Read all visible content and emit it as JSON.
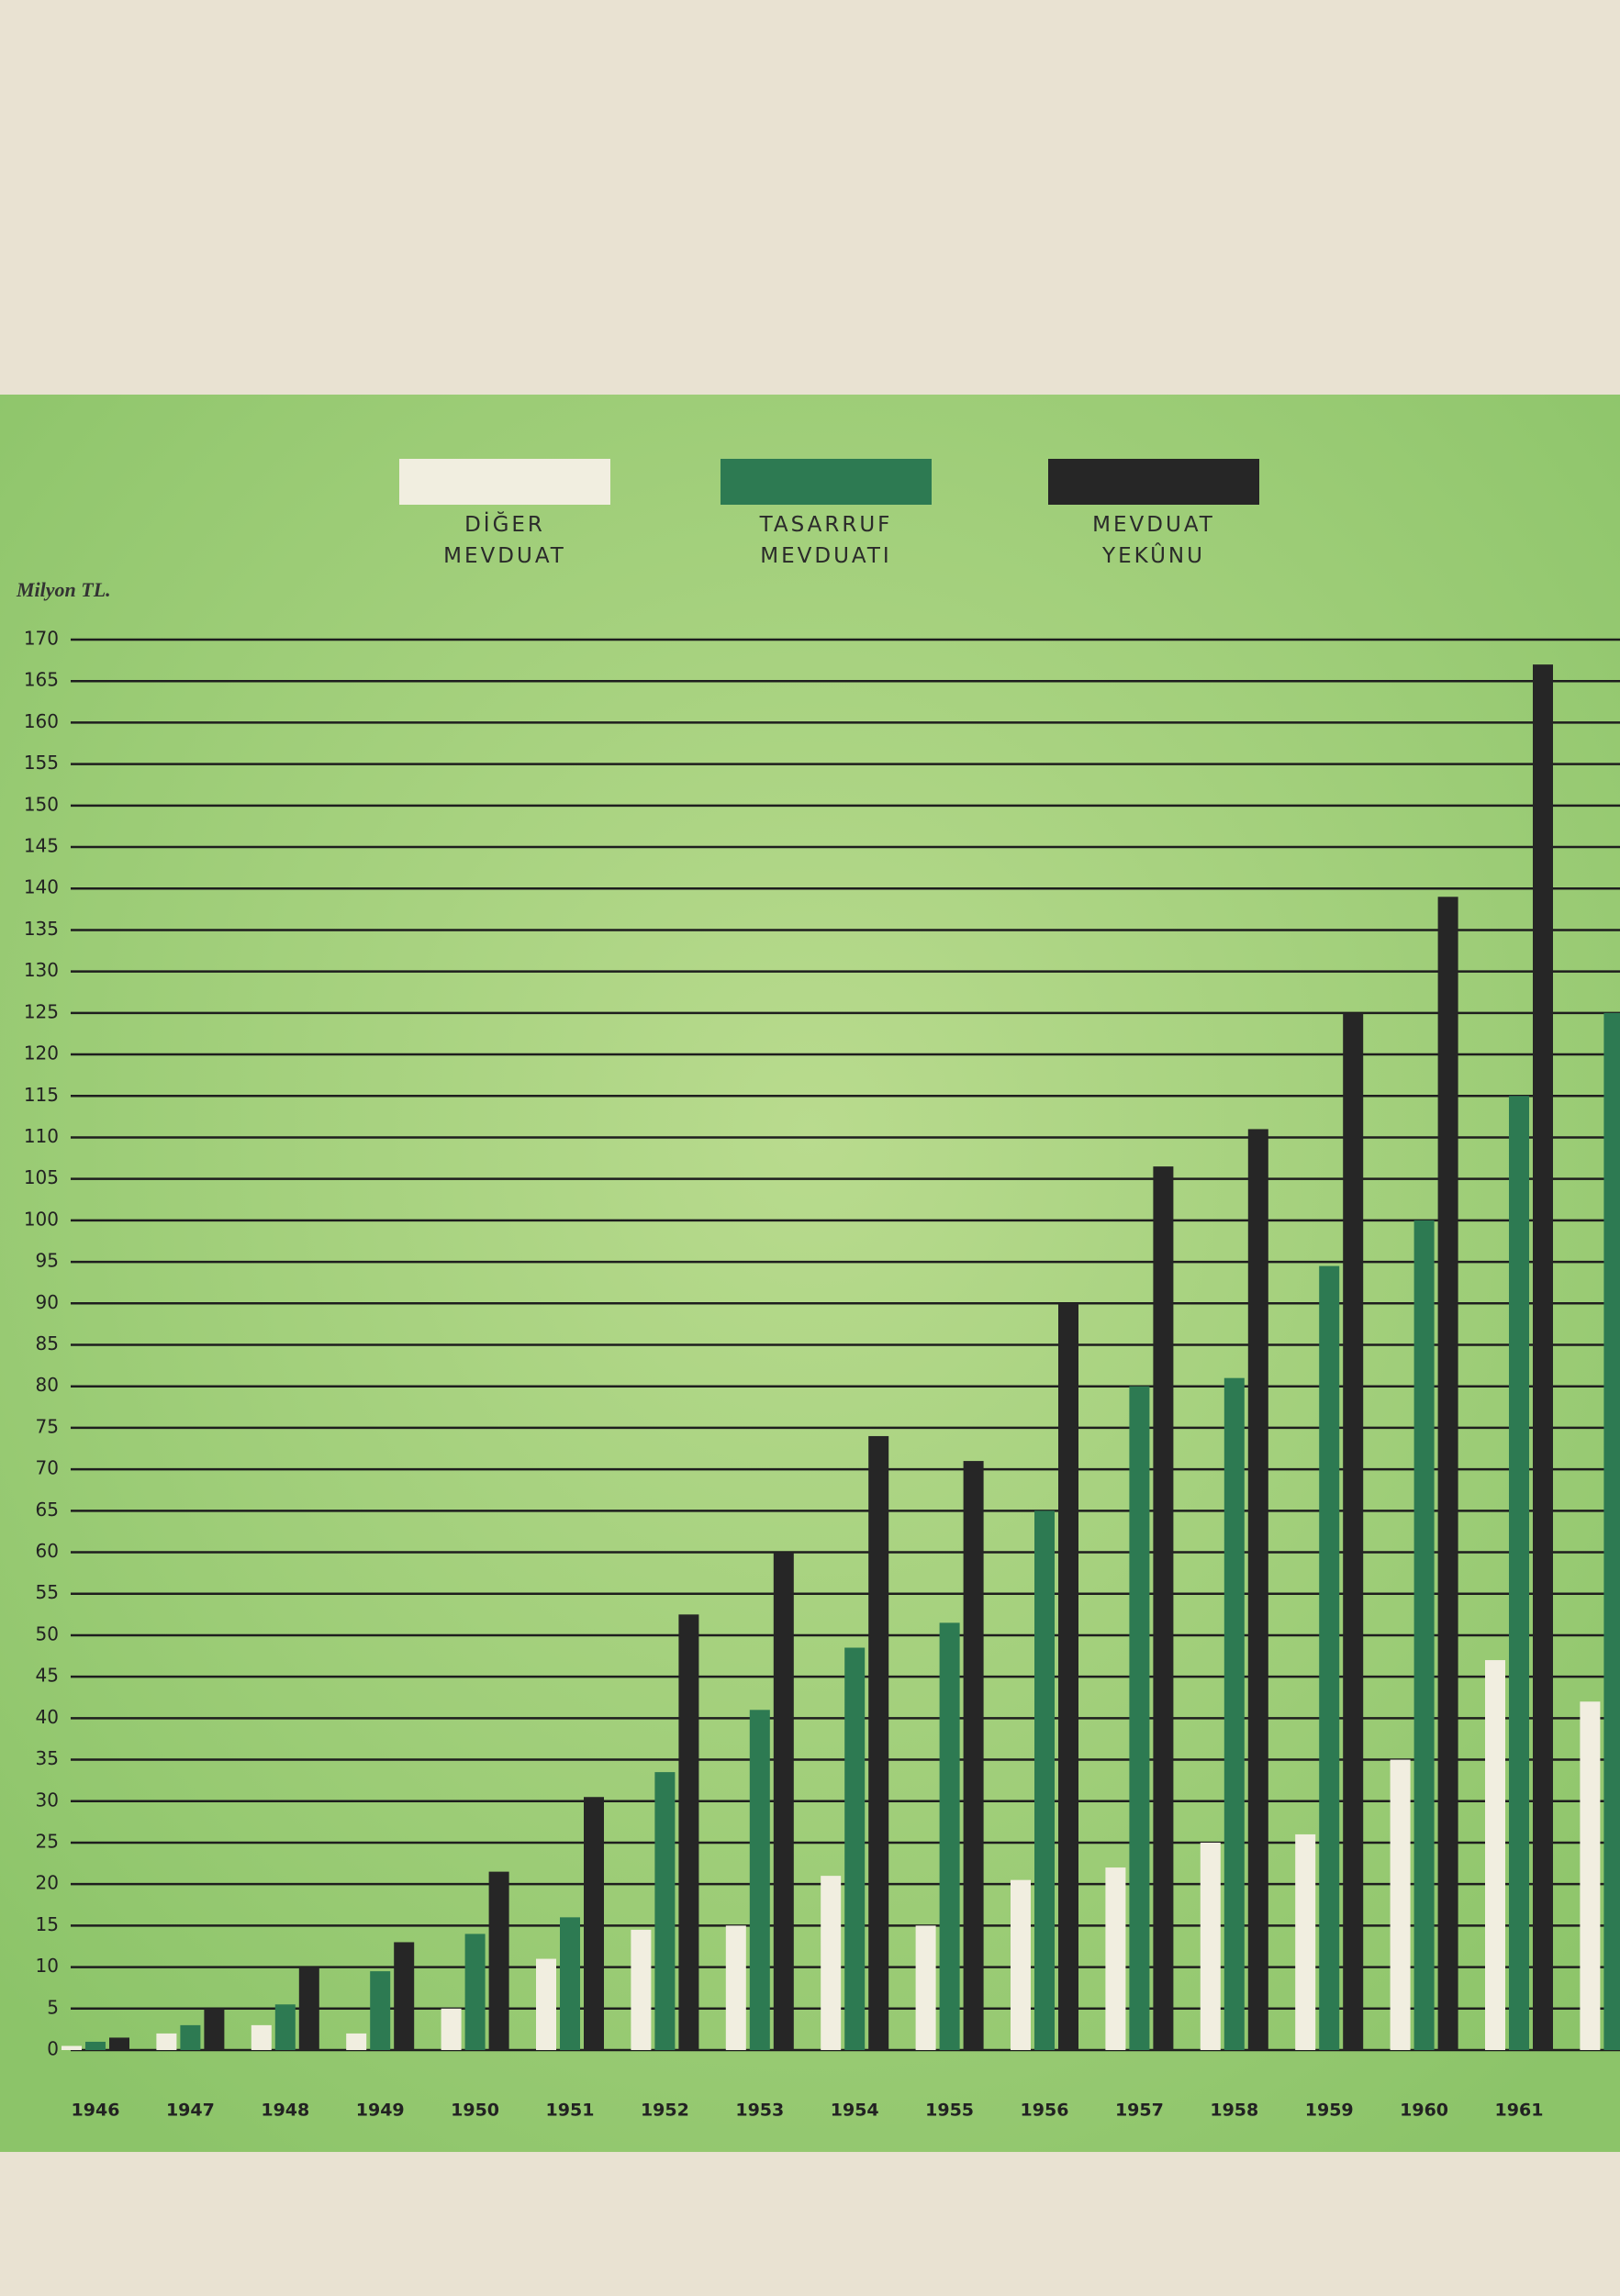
{
  "chart_data": {
    "type": "bar",
    "y_label": "Milyon TL.",
    "categories": [
      "1946",
      "1947",
      "1948",
      "1949",
      "1950",
      "1951",
      "1952",
      "1953",
      "1954",
      "1955",
      "1956",
      "1957",
      "1958",
      "1959",
      "1960",
      "1961",
      null
    ],
    "series": [
      {
        "name": "DİĞER MEVDUAT",
        "color": "#f1eee0",
        "values": [
          0.5,
          2,
          3,
          2,
          5,
          11,
          14.5,
          15,
          21,
          15,
          20.5,
          22,
          25,
          26,
          35,
          47,
          42
        ]
      },
      {
        "name": "TASARRUF MEVDUATI",
        "color": "#2d7a52",
        "values": [
          1,
          3,
          5.5,
          9.5,
          14,
          16,
          33.5,
          41,
          48.5,
          51.5,
          65,
          80,
          81,
          94.5,
          100,
          115,
          125
        ]
      },
      {
        "name": "MEVDUAT YEKÛNU",
        "color": "#262626",
        "values": [
          1.5,
          5,
          10,
          13,
          21.5,
          30.5,
          52.5,
          60,
          74,
          71,
          90,
          106.5,
          111,
          125,
          139,
          167,
          null
        ]
      }
    ],
    "ylim": [
      0,
      170
    ],
    "yticks": [
      0,
      5,
      10,
      15,
      20,
      25,
      30,
      35,
      40,
      45,
      50,
      55,
      60,
      65,
      70,
      75,
      80,
      85,
      90,
      95,
      100,
      105,
      110,
      115,
      120,
      125,
      130,
      135,
      140,
      145,
      150,
      155,
      160,
      165,
      170
    ],
    "grid": true
  }
}
